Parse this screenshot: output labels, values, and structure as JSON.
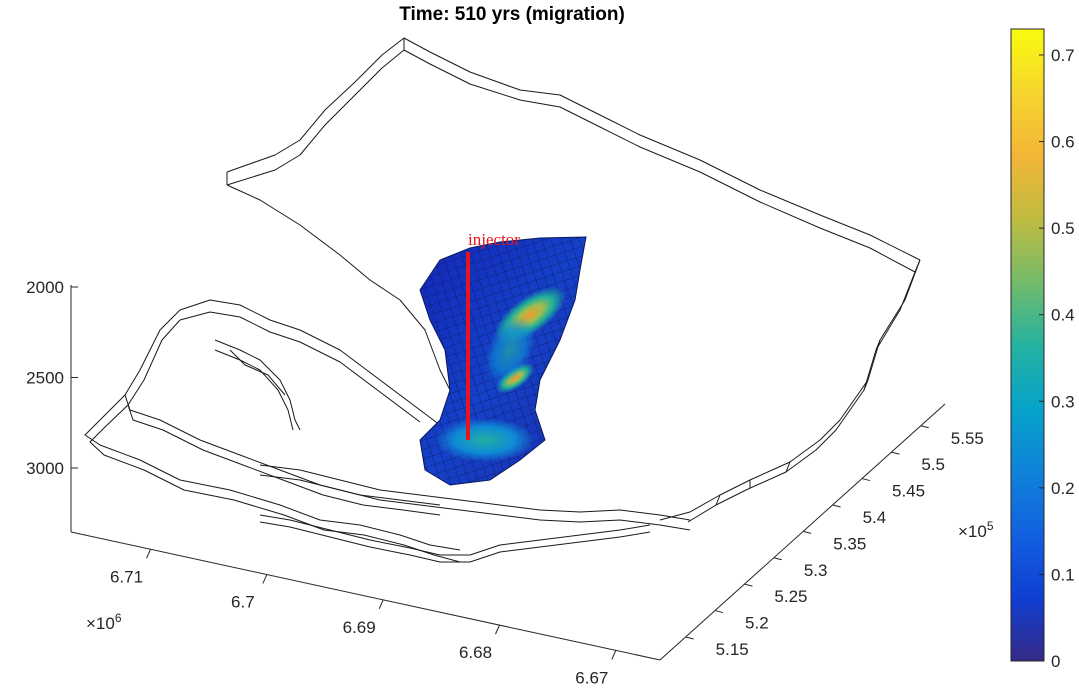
{
  "chart_data": {
    "type": "3d-surface",
    "title": "Time:  510 yrs (migration)",
    "z_axis": {
      "ticks": [
        "2000",
        "2500",
        "3000"
      ],
      "reversed": true
    },
    "y_axis": {
      "ticks": [
        "6.71",
        "6.7",
        "6.69",
        "6.68",
        "6.67"
      ],
      "multiplier_base": "×10",
      "multiplier_exp": "6"
    },
    "x_axis": {
      "ticks": [
        "5.15",
        "5.2",
        "5.25",
        "5.3",
        "5.35",
        "5.4",
        "5.45",
        "5.5",
        "5.55"
      ],
      "multiplier_base": "×10",
      "multiplier_exp": "5"
    },
    "annotation": {
      "text": "injector",
      "color": "#e8141d"
    },
    "colorbar": {
      "ticks": [
        "0",
        "0.1",
        "0.2",
        "0.3",
        "0.4",
        "0.5",
        "0.6",
        "0.7"
      ],
      "colormap": "parula",
      "range": [
        0,
        0.73
      ]
    },
    "grid": false,
    "legend": "none"
  }
}
